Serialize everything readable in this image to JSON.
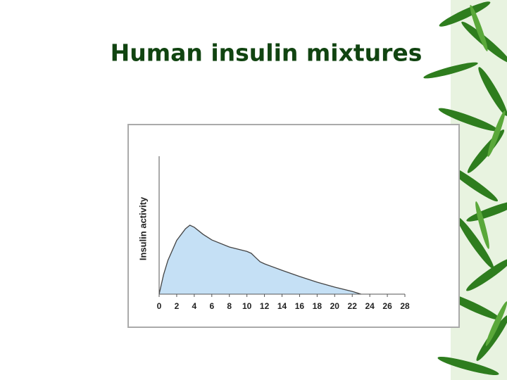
{
  "title": "Human insulin mixtures",
  "chart_data": {
    "type": "area",
    "y_label": "Insulin activity",
    "x": [
      0,
      0.5,
      1,
      2,
      3,
      3.5,
      4,
      5,
      6,
      8,
      10,
      10.5,
      11,
      11.5,
      12,
      14,
      16,
      18,
      20,
      22,
      23
    ],
    "values": [
      0,
      14,
      24.5,
      39,
      47.4,
      50,
      48.5,
      43.4,
      39.3,
      34.2,
      31,
      29.6,
      26.5,
      23.5,
      22,
      17.3,
      12.8,
      8.7,
      5.1,
      2,
      0
    ],
    "color": "#c5e0f5",
    "xlim": [
      0,
      28
    ],
    "xticks": [
      0,
      2,
      4,
      6,
      8,
      10,
      12,
      14,
      16,
      18,
      20,
      22,
      24,
      26,
      28
    ],
    "ylim": [
      0,
      100
    ]
  }
}
